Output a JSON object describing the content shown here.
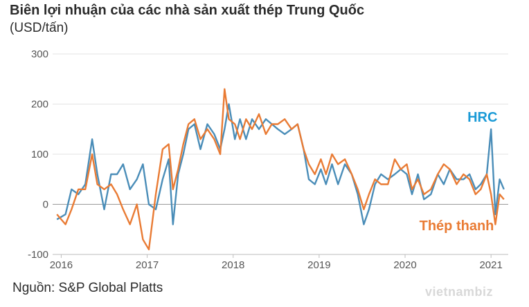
{
  "header": {
    "title": "Biên lợi nhuận của các nhà sản xuất thép Trung Quốc",
    "subtitle": "(USD/tấn)"
  },
  "footer": {
    "source": "Nguồn: S&P Global Platts",
    "watermark": "vietnambiz"
  },
  "colors": {
    "hrc": "#4a8db8",
    "rebar": "#e97b34",
    "hrc_label": "#1a9ad6",
    "rebar_label": "#e97b34",
    "grid": "#e3e3e3",
    "zero": "#9a9a9a"
  },
  "chart_data": {
    "type": "line",
    "title": "Biên lợi nhuận của các nhà sản xuất thép Trung Quốc",
    "ylabel": "(USD/tấn)",
    "ylim": [
      -100,
      300
    ],
    "xlim": [
      2015.9,
      2021.2
    ],
    "yticks": [
      -100,
      0,
      100,
      200,
      300
    ],
    "xticks": [
      2016,
      2017,
      2018,
      2019,
      2020,
      2021
    ],
    "grid": true,
    "series": [
      {
        "name": "HRC",
        "x": [
          2015.95,
          2016.05,
          2016.12,
          2016.2,
          2016.28,
          2016.36,
          2016.42,
          2016.5,
          2016.58,
          2016.65,
          2016.72,
          2016.8,
          2016.88,
          2016.95,
          2017.02,
          2017.1,
          2017.18,
          2017.25,
          2017.3,
          2017.36,
          2017.42,
          2017.48,
          2017.55,
          2017.62,
          2017.7,
          2017.78,
          2017.85,
          2017.9,
          2017.95,
          2018.02,
          2018.08,
          2018.15,
          2018.22,
          2018.3,
          2018.38,
          2018.45,
          2018.52,
          2018.6,
          2018.68,
          2018.75,
          2018.82,
          2018.88,
          2018.95,
          2019.02,
          2019.08,
          2019.15,
          2019.22,
          2019.3,
          2019.38,
          2019.45,
          2019.52,
          2019.58,
          2019.65,
          2019.72,
          2019.8,
          2019.88,
          2019.95,
          2020.02,
          2020.08,
          2020.15,
          2020.22,
          2020.3,
          2020.38,
          2020.45,
          2020.52,
          2020.6,
          2020.68,
          2020.75,
          2020.82,
          2020.88,
          2020.95,
          2021.0,
          2021.05,
          2021.1,
          2021.15
        ],
        "values": [
          -30,
          -20,
          30,
          20,
          40,
          130,
          60,
          -10,
          60,
          60,
          80,
          30,
          50,
          80,
          0,
          -10,
          50,
          90,
          -40,
          60,
          100,
          150,
          160,
          110,
          160,
          140,
          110,
          150,
          200,
          130,
          170,
          130,
          170,
          150,
          170,
          160,
          150,
          140,
          150,
          160,
          110,
          50,
          40,
          70,
          40,
          80,
          40,
          80,
          60,
          20,
          -40,
          -10,
          40,
          60,
          50,
          60,
          70,
          60,
          20,
          60,
          10,
          20,
          60,
          40,
          70,
          50,
          50,
          60,
          30,
          40,
          60,
          150,
          -20,
          50,
          30
        ]
      },
      {
        "name": "Thép thanh",
        "x": [
          2015.95,
          2016.05,
          2016.12,
          2016.2,
          2016.28,
          2016.36,
          2016.42,
          2016.5,
          2016.58,
          2016.65,
          2016.72,
          2016.8,
          2016.88,
          2016.95,
          2017.02,
          2017.1,
          2017.18,
          2017.25,
          2017.3,
          2017.36,
          2017.42,
          2017.48,
          2017.55,
          2017.62,
          2017.7,
          2017.78,
          2017.85,
          2017.9,
          2017.95,
          2018.02,
          2018.08,
          2018.15,
          2018.22,
          2018.3,
          2018.38,
          2018.45,
          2018.52,
          2018.6,
          2018.68,
          2018.75,
          2018.82,
          2018.88,
          2018.95,
          2019.02,
          2019.08,
          2019.15,
          2019.22,
          2019.3,
          2019.38,
          2019.45,
          2019.52,
          2019.58,
          2019.65,
          2019.72,
          2019.8,
          2019.88,
          2019.95,
          2020.02,
          2020.08,
          2020.15,
          2020.22,
          2020.3,
          2020.38,
          2020.45,
          2020.52,
          2020.6,
          2020.68,
          2020.75,
          2020.82,
          2020.88,
          2020.95,
          2021.0,
          2021.05,
          2021.1,
          2021.15
        ],
        "values": [
          -20,
          -40,
          -10,
          30,
          30,
          100,
          40,
          30,
          40,
          20,
          -10,
          -40,
          0,
          -70,
          -90,
          20,
          110,
          120,
          30,
          70,
          120,
          160,
          170,
          130,
          150,
          130,
          100,
          230,
          170,
          160,
          130,
          170,
          150,
          180,
          140,
          160,
          160,
          170,
          150,
          160,
          110,
          80,
          60,
          90,
          60,
          100,
          80,
          90,
          60,
          30,
          -10,
          20,
          50,
          40,
          40,
          90,
          70,
          80,
          30,
          50,
          20,
          30,
          60,
          80,
          70,
          40,
          60,
          50,
          20,
          30,
          60,
          20,
          -40,
          20,
          10
        ]
      }
    ],
    "annotations": [
      {
        "text": "HRC",
        "x": 2020.9,
        "y": 165
      },
      {
        "text": "Thép thanh",
        "x": 2020.6,
        "y": -52
      }
    ]
  }
}
